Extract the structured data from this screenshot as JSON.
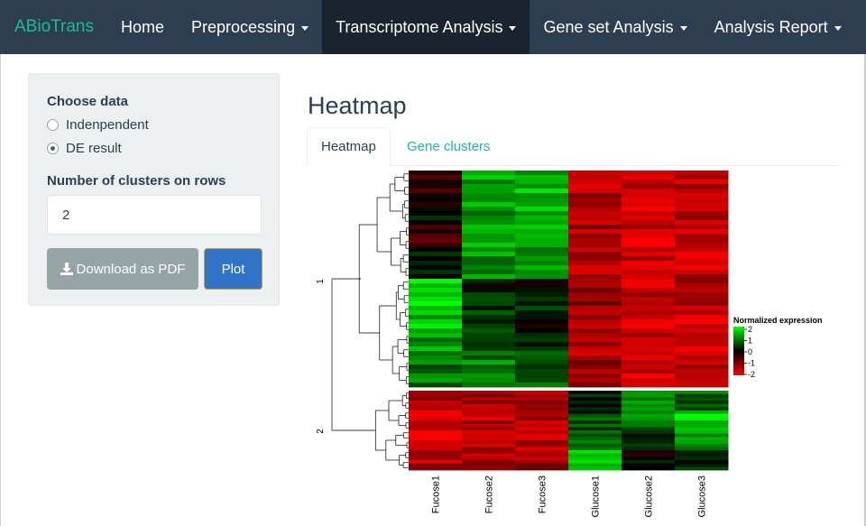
{
  "navbar": {
    "brand": "ABioTrans",
    "items": [
      {
        "label": "Home",
        "dropdown": false,
        "active": false
      },
      {
        "label": "Preprocessing",
        "dropdown": true,
        "active": false
      },
      {
        "label": "Transcriptome Analysis",
        "dropdown": true,
        "active": true
      },
      {
        "label": "Gene set Analysis",
        "dropdown": true,
        "active": false
      },
      {
        "label": "Analysis Report",
        "dropdown": true,
        "active": false
      }
    ]
  },
  "sidebar": {
    "choose_data_label": "Choose data",
    "radio_options": [
      {
        "label": "Indenpendent",
        "checked": false
      },
      {
        "label": "DE result",
        "checked": true
      }
    ],
    "clusters_label": "Number of clusters on rows",
    "clusters_value": "2",
    "download_label": "Download as PDF",
    "plot_label": "Plot"
  },
  "main": {
    "title": "Heatmap",
    "tabs": [
      {
        "label": "Heatmap",
        "active": true
      },
      {
        "label": "Gene clusters",
        "active": false
      }
    ]
  },
  "heatmap": {
    "columns": [
      "Fucose1",
      "Fucose2",
      "Fucose3",
      "Glucose1",
      "Glucose2",
      "Glucose3"
    ],
    "row_clusters": [
      "1",
      "2"
    ],
    "legend": {
      "title": "Normalized expression",
      "ticks": [
        "2",
        "1",
        "0",
        "-1",
        "-2"
      ],
      "colors": {
        "high": "#00ff00",
        "mid": "#000000",
        "low": "#ff0000"
      }
    },
    "cluster1_profile": [
      [
        -0.3,
        1.3,
        1.4,
        -1.4,
        -1.6,
        -1.5
      ],
      [
        0.0,
        1.2,
        1.5,
        -1.5,
        -1.7,
        -1.4
      ],
      [
        -0.4,
        1.3,
        1.3,
        -1.3,
        -1.6,
        -1.7
      ],
      [
        0.3,
        1.2,
        1.2,
        -1.4,
        -1.5,
        -1.5
      ],
      [
        1.8,
        0.2,
        0.1,
        -1.2,
        -1.5,
        -1.4
      ],
      [
        1.5,
        0.5,
        0.2,
        -1.5,
        -1.7,
        -1.6
      ],
      [
        1.2,
        0.8,
        0.5,
        -1.3,
        -1.6,
        -1.5
      ],
      [
        0.9,
        1.0,
        0.7,
        -1.2,
        -1.7,
        -1.6
      ]
    ],
    "cluster2_profile": [
      [
        -1.4,
        -1.3,
        -1.2,
        0.2,
        1.3,
        0.8
      ],
      [
        -1.5,
        -1.4,
        -1.3,
        0.5,
        0.9,
        1.7
      ],
      [
        -1.6,
        -1.5,
        -1.4,
        0.9,
        0.4,
        1.1
      ],
      [
        -1.4,
        -1.3,
        -1.2,
        1.6,
        0.1,
        0.3
      ]
    ]
  }
}
